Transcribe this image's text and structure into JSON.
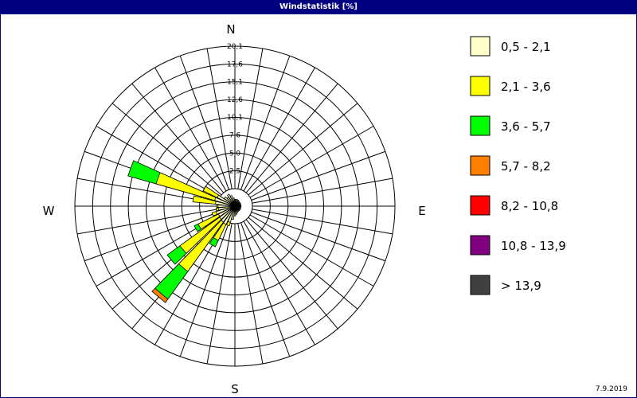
{
  "window": {
    "title": "Windstatistik [%]",
    "date": "7.9.2019"
  },
  "chart_data": {
    "type": "wind-rose",
    "title": "Windstatistik [%]",
    "unit": "%",
    "compass": {
      "north": "N",
      "east": "E",
      "south": "S",
      "west": "W"
    },
    "radial_ticks": [
      "2,5",
      "5,0",
      "7,6",
      "10,1",
      "12,6",
      "15,1",
      "17,6",
      "20,1"
    ],
    "radial_tick_values": [
      2.5,
      5.0,
      7.6,
      10.1,
      12.6,
      15.1,
      17.6,
      20.1
    ],
    "rmax": 20.1,
    "grid": true,
    "legend_position": "right",
    "classes": [
      {
        "label": "0,5 - 2,1",
        "color": "#ffffcc"
      },
      {
        "label": "2,1 - 3,6",
        "color": "#ffff00"
      },
      {
        "label": "3,6 - 5,7",
        "color": "#00ff00"
      },
      {
        "label": "5,7 - 8,2",
        "color": "#ff8000"
      },
      {
        "label": "8,2 - 10,8",
        "color": "#ff0000"
      },
      {
        "label": "10,8 - 13,9",
        "color": "#800080"
      },
      {
        "label": "> 13,9",
        "color": "#404040"
      }
    ],
    "sectors": [
      {
        "direction": 0,
        "cumulative": [
          0.6,
          0.6,
          0.6,
          0.6,
          0.6,
          0.6,
          0.6
        ]
      },
      {
        "direction": 10,
        "cumulative": [
          0.6,
          0.6,
          0.6,
          0.6,
          0.6,
          0.6,
          0.6
        ]
      },
      {
        "direction": 20,
        "cumulative": [
          0.6,
          0.6,
          0.6,
          0.6,
          0.6,
          0.6,
          0.6
        ]
      },
      {
        "direction": 30,
        "cumulative": [
          0.6,
          0.6,
          0.6,
          0.6,
          0.6,
          0.6,
          0.6
        ]
      },
      {
        "direction": 40,
        "cumulative": [
          0.5,
          0.5,
          0.5,
          0.5,
          0.5,
          0.5,
          0.5
        ]
      },
      {
        "direction": 50,
        "cumulative": [
          0.5,
          0.5,
          0.5,
          0.5,
          0.5,
          0.5,
          0.5
        ]
      },
      {
        "direction": 60,
        "cumulative": [
          0.5,
          0.5,
          0.5,
          0.5,
          0.5,
          0.5,
          0.5
        ]
      },
      {
        "direction": 70,
        "cumulative": [
          0.5,
          0.5,
          0.5,
          0.5,
          0.5,
          0.5,
          0.5
        ]
      },
      {
        "direction": 80,
        "cumulative": [
          0.5,
          0.5,
          0.5,
          0.5,
          0.5,
          0.5,
          0.5
        ]
      },
      {
        "direction": 90,
        "cumulative": [
          0.5,
          0.5,
          0.5,
          0.5,
          0.5,
          0.5,
          0.5
        ]
      },
      {
        "direction": 100,
        "cumulative": [
          0.5,
          0.5,
          0.5,
          0.5,
          0.5,
          0.5,
          0.5
        ]
      },
      {
        "direction": 110,
        "cumulative": [
          0.5,
          0.5,
          0.5,
          0.5,
          0.5,
          0.5,
          0.5
        ]
      },
      {
        "direction": 120,
        "cumulative": [
          0.5,
          0.5,
          0.5,
          0.5,
          0.5,
          0.5,
          0.5
        ]
      },
      {
        "direction": 130,
        "cumulative": [
          0.5,
          0.5,
          0.5,
          0.5,
          0.5,
          0.5,
          0.5
        ]
      },
      {
        "direction": 140,
        "cumulative": [
          0.5,
          0.5,
          0.5,
          0.5,
          0.5,
          0.5,
          0.5
        ]
      },
      {
        "direction": 150,
        "cumulative": [
          0.5,
          0.5,
          0.5,
          0.5,
          0.5,
          0.5,
          0.5
        ]
      },
      {
        "direction": 160,
        "cumulative": [
          0.6,
          0.6,
          0.6,
          0.6,
          0.6,
          0.6,
          0.6
        ]
      },
      {
        "direction": 170,
        "cumulative": [
          0.8,
          0.8,
          0.8,
          0.8,
          0.8,
          0.8,
          0.8
        ]
      },
      {
        "direction": 180,
        "cumulative": [
          1.0,
          1.0,
          1.0,
          1.0,
          1.0,
          1.0,
          1.0
        ]
      },
      {
        "direction": 190,
        "cumulative": [
          1.5,
          1.5,
          1.5,
          1.5,
          1.5,
          1.5,
          1.5
        ]
      },
      {
        "direction": 200,
        "cumulative": [
          2.0,
          2.5,
          2.5,
          2.5,
          2.5,
          2.5,
          2.5
        ]
      },
      {
        "direction": 210,
        "cumulative": [
          2.5,
          5.0,
          6.0,
          6.0,
          6.0,
          6.0,
          6.0
        ]
      },
      {
        "direction": 220,
        "cumulative": [
          2.4,
          11.0,
          15.8,
          16.4,
          16.4,
          16.4,
          16.4
        ]
      },
      {
        "direction": 230,
        "cumulative": [
          2.3,
          9.2,
          11.4,
          11.4,
          11.4,
          11.4,
          11.4
        ]
      },
      {
        "direction": 240,
        "cumulative": [
          2.2,
          5.4,
          6.0,
          6.0,
          6.0,
          6.0,
          6.0
        ]
      },
      {
        "direction": 250,
        "cumulative": [
          2.4,
          3.0,
          3.0,
          3.0,
          3.0,
          3.0,
          3.0
        ]
      },
      {
        "direction": 260,
        "cumulative": [
          2.0,
          2.3,
          2.3,
          2.3,
          2.3,
          2.3,
          2.3
        ]
      },
      {
        "direction": 270,
        "cumulative": [
          2.0,
          2.2,
          2.2,
          2.2,
          2.2,
          2.2,
          2.2
        ]
      },
      {
        "direction": 280,
        "cumulative": [
          2.4,
          5.6,
          5.6,
          5.6,
          5.6,
          5.6,
          5.6
        ]
      },
      {
        "direction": 290,
        "cumulative": [
          2.6,
          11.2,
          15.3,
          15.3,
          15.3,
          15.3,
          15.3
        ]
      },
      {
        "direction": 300,
        "cumulative": [
          2.4,
          4.6,
          4.6,
          4.6,
          4.6,
          4.6,
          4.6
        ]
      },
      {
        "direction": 310,
        "cumulative": [
          1.5,
          1.5,
          1.5,
          1.5,
          1.5,
          1.5,
          1.5
        ]
      },
      {
        "direction": 320,
        "cumulative": [
          1.2,
          1.2,
          1.2,
          1.2,
          1.2,
          1.2,
          1.2
        ]
      },
      {
        "direction": 330,
        "cumulative": [
          1.5,
          1.5,
          1.5,
          1.5,
          1.5,
          1.5,
          1.5
        ]
      },
      {
        "direction": 340,
        "cumulative": [
          1.2,
          1.2,
          1.2,
          1.2,
          1.2,
          1.2,
          1.2
        ]
      },
      {
        "direction": 350,
        "cumulative": [
          0.8,
          0.8,
          0.8,
          0.8,
          0.8,
          0.8,
          0.8
        ]
      }
    ]
  }
}
